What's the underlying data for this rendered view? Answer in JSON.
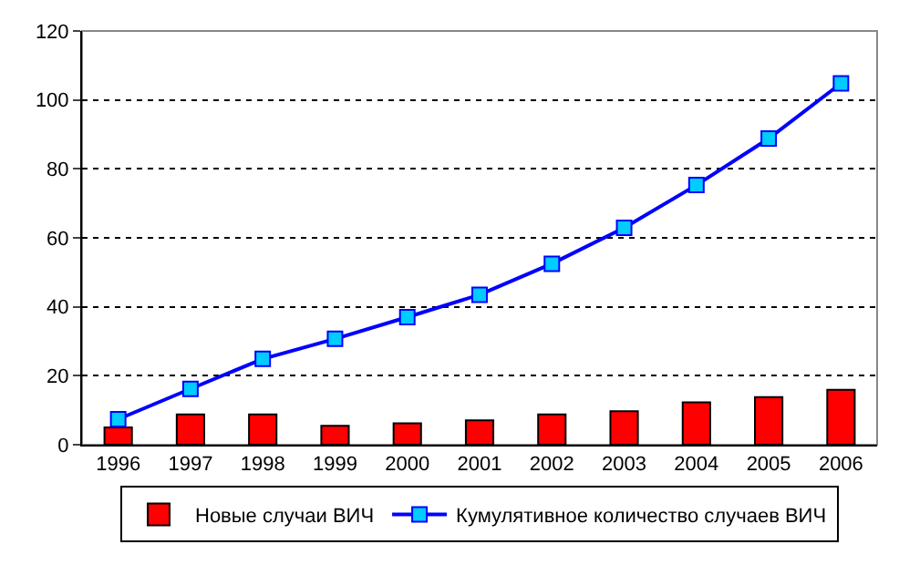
{
  "chart_data": {
    "type": "bar",
    "categories": [
      "1996",
      "1997",
      "1998",
      "1999",
      "2000",
      "2001",
      "2002",
      "2003",
      "2004",
      "2005",
      "2006"
    ],
    "series": [
      {
        "name": "Новые случаи ВИЧ",
        "color": "#ff0000",
        "values": [
          5.0,
          8.8,
          8.8,
          5.5,
          6.2,
          7.1,
          8.8,
          9.7,
          12.3,
          13.8,
          15.9
        ]
      },
      {
        "name": "Кумулятивное количество случаев ВИЧ",
        "type": "line",
        "color": "#0000ff",
        "values": [
          7.4,
          16.2,
          24.9,
          30.7,
          37.0,
          43.5,
          52.5,
          62.9,
          75.3,
          88.8,
          104.8
        ]
      }
    ],
    "ylim": [
      0,
      120
    ],
    "yticks": [
      0,
      20,
      40,
      60,
      80,
      100,
      120
    ],
    "grid": "y",
    "legend": "bottom",
    "marker": "square",
    "line_style": "solid"
  }
}
